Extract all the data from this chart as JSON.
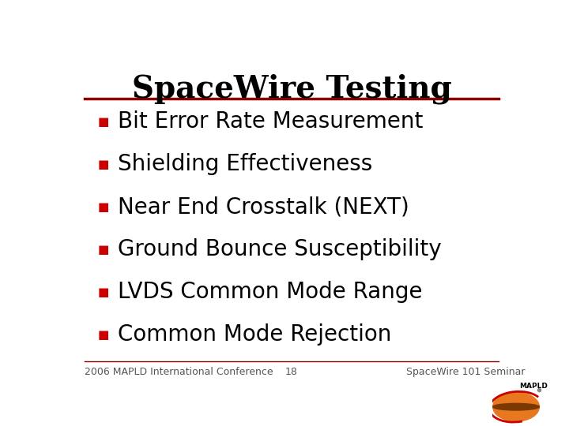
{
  "title": "SpaceWire Testing",
  "title_fontsize": 28,
  "title_color": "#000000",
  "title_font": "serif",
  "underline_color": "#8B0000",
  "background_color": "#ffffff",
  "bullet_color": "#cc0000",
  "bullet_text_color": "#000000",
  "bullet_fontsize": 20,
  "bullet_font": "sans-serif",
  "bullets": [
    "Bit Error Rate Measurement",
    "Shielding Effectiveness",
    "Near End Crosstalk (NEXT)",
    "Ground Bounce Susceptibility",
    "LVDS Common Mode Range",
    "Common Mode Rejection"
  ],
  "footer_left": "2006 MAPLD International Conference",
  "footer_center": "18",
  "footer_right": "SpaceWire 101 Seminar",
  "footer_fontsize": 9,
  "footer_color": "#555555",
  "footer_line_color": "#8B0000"
}
